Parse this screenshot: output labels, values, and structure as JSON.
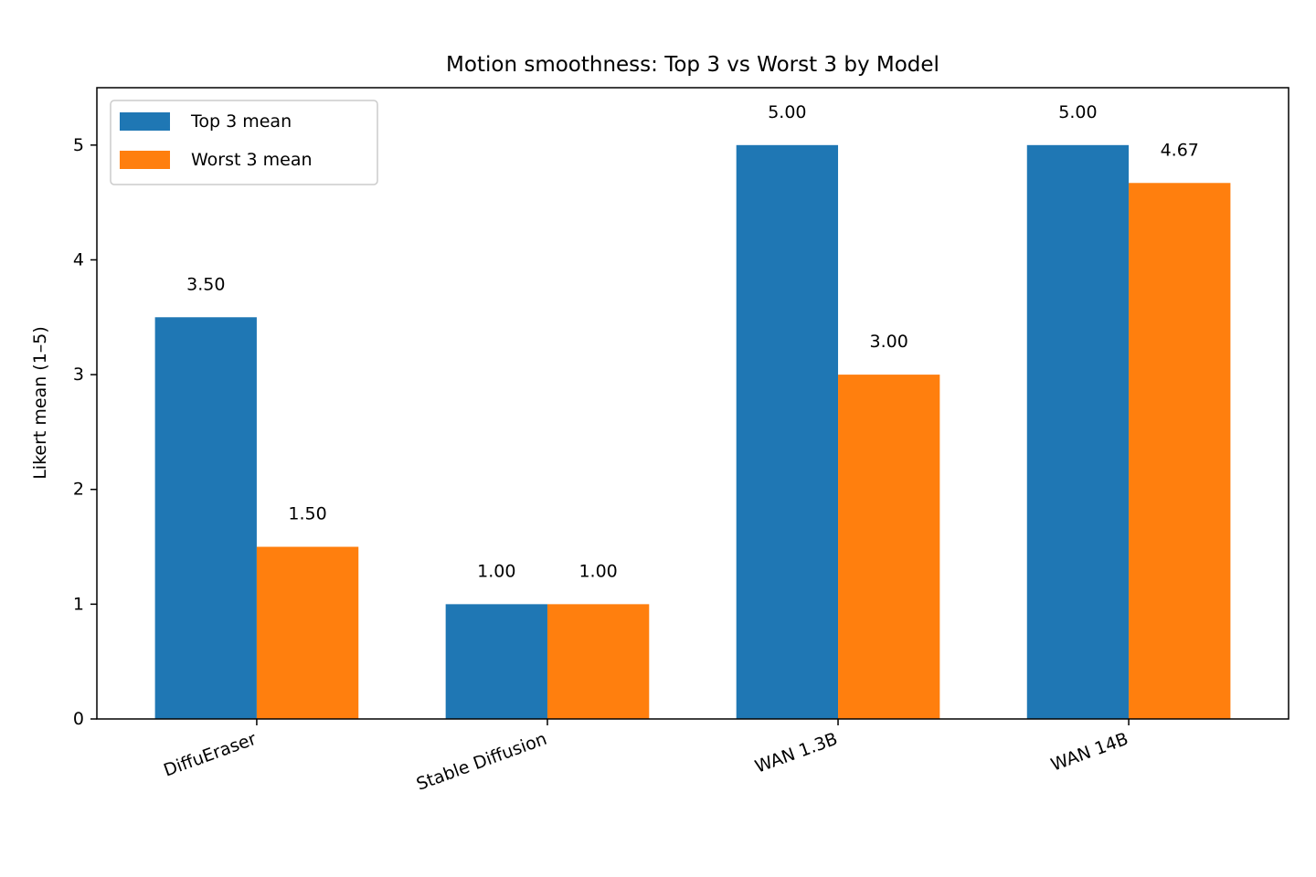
{
  "chart_data": {
    "type": "bar",
    "title": "Motion smoothness: Top 3 vs Worst 3 by Model",
    "xlabel": "",
    "ylabel": "Likert mean (1–5)",
    "categories": [
      "DiffuEraser",
      "Stable Diffusion",
      "WAN 1.3B",
      "WAN 14B"
    ],
    "series": [
      {
        "name": "Top 3 mean",
        "color": "#1f77b4",
        "values": [
          3.5,
          1.0,
          5.0,
          5.0
        ],
        "labels": [
          "3.50",
          "1.00",
          "5.00",
          "5.00"
        ]
      },
      {
        "name": "Worst 3 mean",
        "color": "#ff7f0e",
        "values": [
          1.5,
          1.0,
          3.0,
          4.67
        ],
        "labels": [
          "1.50",
          "1.00",
          "3.00",
          "4.67"
        ]
      }
    ],
    "ylim": [
      0,
      5.5
    ],
    "yticks": [
      0,
      1,
      2,
      3,
      4,
      5
    ],
    "grid": false,
    "legend_position": "top-left",
    "xtick_rotation": "angled"
  }
}
